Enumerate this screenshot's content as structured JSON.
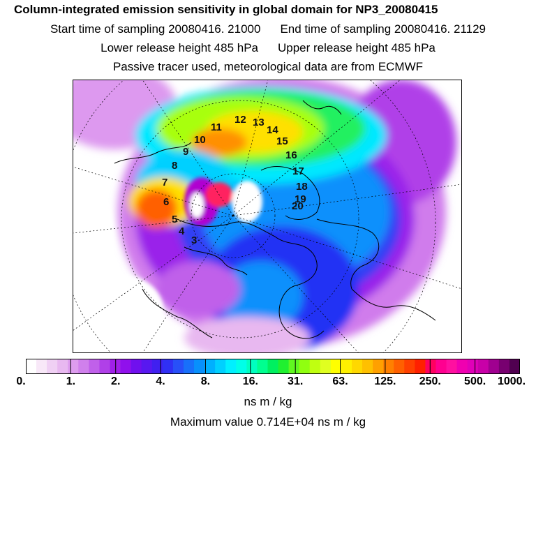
{
  "header": {
    "title": "Column-integrated emission sensitivity in global domain for NP3_20080415",
    "start_label": "Start time of sampling 20080416. 21000",
    "end_label": "End time of sampling 20080416. 21129",
    "lower_label": "Lower release height  485 hPa",
    "upper_label": "Upper release height  485 hPa",
    "tracer_label": "Passive tracer used, meteorological data are from ECMWF"
  },
  "map": {
    "track_labels": [
      "3",
      "4",
      "5",
      "6",
      "7",
      "8",
      "9",
      "10",
      "11",
      "12",
      "13",
      "14",
      "15",
      "16",
      "17",
      "18",
      "19",
      "20"
    ]
  },
  "colorbar": {
    "ticks": [
      "0.",
      "1.",
      "2.",
      "4.",
      "8.",
      "16.",
      "31.",
      "63.",
      "125.",
      "250.",
      "500.",
      "1000."
    ],
    "colors": [
      "#ffffff",
      "#f8e8f8",
      "#f0d0f4",
      "#e8b8f0",
      "#dd9cee",
      "#d080ec",
      "#c060ea",
      "#b040e8",
      "#a020e8",
      "#9010ec",
      "#7010ee",
      "#5818f0",
      "#4020f0",
      "#3030f4",
      "#2850f8",
      "#1870fa",
      "#0890fc",
      "#00b0fe",
      "#00d0ff",
      "#00f0ff",
      "#00ffe8",
      "#00ffc0",
      "#00ff90",
      "#00f060",
      "#20f030",
      "#60f820",
      "#90ff10",
      "#c0ff10",
      "#e0ff20",
      "#ffff00",
      "#fff000",
      "#ffd800",
      "#ffc000",
      "#ffa000",
      "#ff8000",
      "#ff6000",
      "#ff4000",
      "#ff2000",
      "#ff0060",
      "#ff0090",
      "#ff10a0",
      "#f000b0",
      "#e000b8",
      "#c800a8",
      "#a00090",
      "#780070",
      "#500050"
    ],
    "units": "ns m / kg"
  },
  "footer": {
    "max_value_label": "Maximum value  0.714E+04 ns m / kg"
  }
}
